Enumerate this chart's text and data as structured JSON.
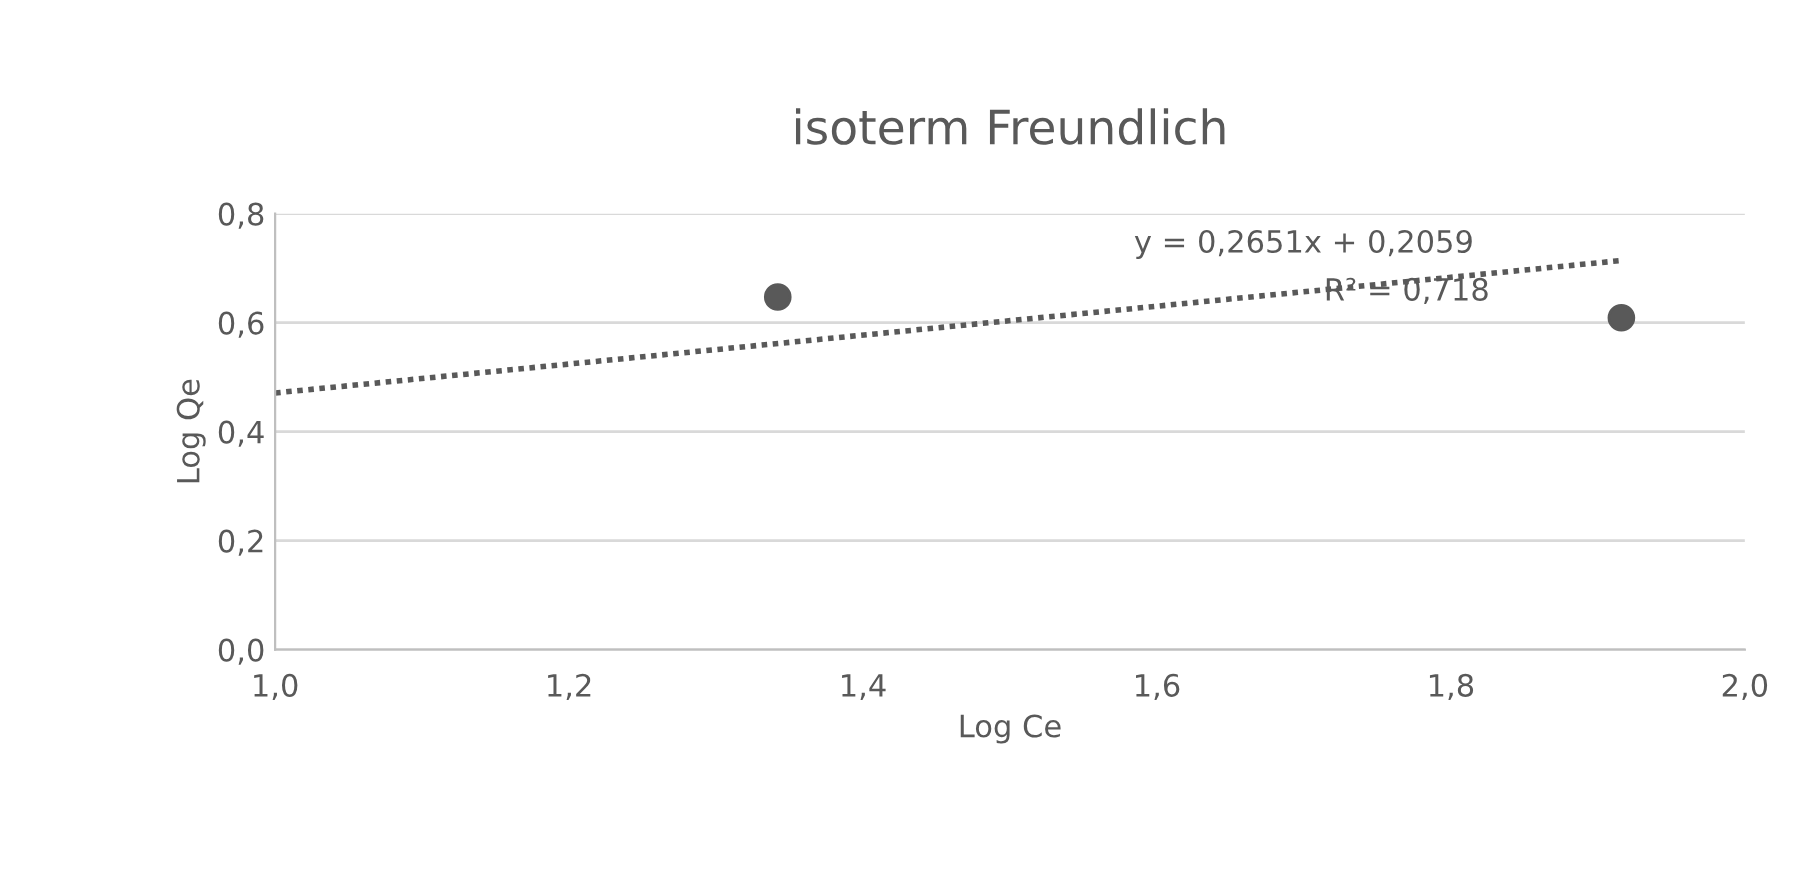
{
  "chart_data": {
    "type": "scatter",
    "title": "isoterm Freundlich",
    "xlabel": "Log Ce",
    "ylabel": "Log Qe",
    "series": [
      {
        "color": "#595959",
        "marker": "circle",
        "x": [
          1.342,
          1.916
        ],
        "values": [
          0.647,
          0.609
        ]
      },
      {
        "type": "line",
        "color": "#595959",
        "line_style": "dotted",
        "marker": "none",
        "x": [
          1.0,
          1.916
        ],
        "values": [
          0.471,
          0.714
        ]
      }
    ],
    "annotations": [
      "y = 0,2651x + 0,2059",
      "R² = 0,718"
    ],
    "xlim": [
      1.0,
      2.0
    ],
    "ylim": [
      0.0,
      0.8
    ],
    "xticks": [
      {
        "value": 1.0,
        "label": "1,0"
      },
      {
        "value": 1.2,
        "label": "1,2"
      },
      {
        "value": 1.4,
        "label": "1,4"
      },
      {
        "value": 1.6,
        "label": "1,6"
      },
      {
        "value": 1.8,
        "label": "1,8"
      },
      {
        "value": 2.0,
        "label": "2,0"
      }
    ],
    "yticks": [
      {
        "value": 0.0,
        "label": "0,0"
      },
      {
        "value": 0.2,
        "label": "0,2"
      },
      {
        "value": 0.4,
        "label": "0,4"
      },
      {
        "value": 0.6,
        "label": "0,6"
      },
      {
        "value": 0.8,
        "label": "0,8"
      }
    ],
    "grid": "y",
    "legend": false
  }
}
